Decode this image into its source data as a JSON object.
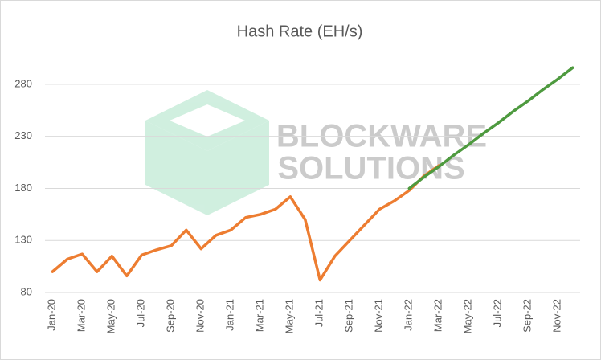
{
  "chart_data": {
    "type": "line",
    "title": "Hash Rate (EH/s)",
    "annotations": [
      "BLOCKWARE",
      "SOLUTIONS"
    ],
    "categories": [
      "Jan-20",
      null,
      "Mar-20",
      null,
      "May-20",
      null,
      "Jul-20",
      null,
      "Sep-20",
      null,
      "Nov-20",
      null,
      "Jan-21",
      null,
      "Mar-21",
      null,
      "May-21",
      null,
      "Jul-21",
      null,
      "Sep-21",
      null,
      "Nov-21",
      null,
      "Jan-22",
      null,
      "Mar-22",
      null,
      "May-22",
      null,
      "Jul-22",
      null,
      "Sep-22",
      null,
      "Nov-22",
      null
    ],
    "series": [
      {
        "color": "#ed7d31",
        "values": [
          100,
          112,
          117,
          100,
          115,
          96,
          116,
          121,
          125,
          140,
          122,
          135,
          140,
          152,
          155,
          160,
          172,
          150,
          92,
          115,
          130,
          145,
          160,
          168,
          178,
          192,
          202,
          null,
          null,
          null,
          null,
          null,
          null,
          null,
          null,
          null
        ]
      },
      {
        "color": "#4e9a3f",
        "values": [
          null,
          null,
          null,
          null,
          null,
          null,
          null,
          null,
          null,
          null,
          null,
          null,
          null,
          null,
          null,
          null,
          null,
          null,
          null,
          null,
          null,
          null,
          null,
          null,
          180,
          191,
          201,
          212,
          222,
          233,
          243,
          254,
          264,
          275,
          285,
          296
        ]
      }
    ],
    "ylim": [
      80,
      300
    ],
    "yticks": [
      80,
      130,
      180,
      230,
      280
    ],
    "grid": true
  }
}
